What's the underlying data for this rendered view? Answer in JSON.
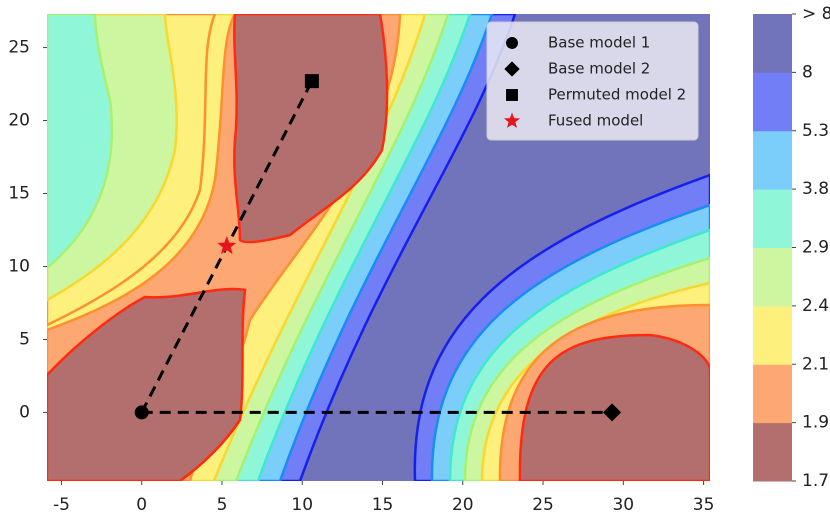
{
  "chart_data": {
    "type": "contour",
    "xlim": [
      -5.9,
      35.4
    ],
    "ylim": [
      -4.7,
      27.3
    ],
    "xticks": [
      -5,
      0,
      5,
      10,
      15,
      20,
      25,
      30,
      35
    ],
    "yticks": [
      0,
      5,
      10,
      15,
      20,
      25
    ],
    "series": [
      {
        "name": "Base model 1",
        "marker": "circle",
        "color": "#000000",
        "x": [
          0
        ],
        "y": [
          0
        ]
      },
      {
        "name": "Base model 2",
        "marker": "diamond",
        "color": "#000000",
        "x": [
          29.3
        ],
        "y": [
          0
        ]
      },
      {
        "name": "Permuted model 2",
        "marker": "square",
        "color": "#000000",
        "x": [
          10.6
        ],
        "y": [
          22.7
        ]
      },
      {
        "name": "Fused model",
        "marker": "star",
        "color": "#e8141c",
        "x": [
          5.3
        ],
        "y": [
          11.4
        ]
      }
    ],
    "colorbar": {
      "labels": [
        "1.7",
        "1.9",
        "2.1",
        "2.4",
        "2.9",
        "3.8",
        "5.3",
        "8",
        "> 8"
      ],
      "colors": [
        "#b36f6e",
        "#fda872",
        "#fdf07c",
        "#cdf6a0",
        "#8ff7d8",
        "#7bcdfa",
        "#727ef5",
        "#7174ba"
      ]
    }
  }
}
